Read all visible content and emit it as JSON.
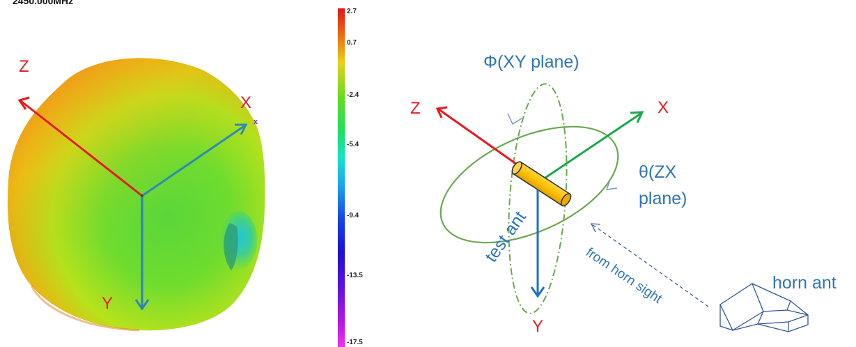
{
  "pattern_view": {
    "frequency": "2450.000MHz",
    "axes": {
      "z": "Z",
      "x": "X",
      "y": "Y",
      "x_marker": "x"
    }
  },
  "colorbar": {
    "ticks": [
      "2.7",
      "0.7",
      "-2.4",
      "-5.4",
      "-9.4",
      "-13.5",
      "-17.5"
    ]
  },
  "setup_diagram": {
    "axes": {
      "z": "Z",
      "x": "X",
      "y": "Y"
    },
    "phi_label": "Φ(XY plane)",
    "theta_label_1": "θ(ZX",
    "theta_label_2": "plane)",
    "test_antenna": "test ant",
    "horn_sight": "from horn sight",
    "horn_antenna": "horn ant"
  },
  "colors": {
    "z_axis": "#e8191e",
    "x_axis_left": "#2e8bb5",
    "y_axis_left": "#2e80c3",
    "x_axis_right": "#19a84b",
    "y_axis_right": "#1f6fbf",
    "label_blue": "#2e75b6",
    "ellipse_green": "#6aa84f",
    "antenna_fill": "#ffc000",
    "horn_line": "#2f5597"
  }
}
